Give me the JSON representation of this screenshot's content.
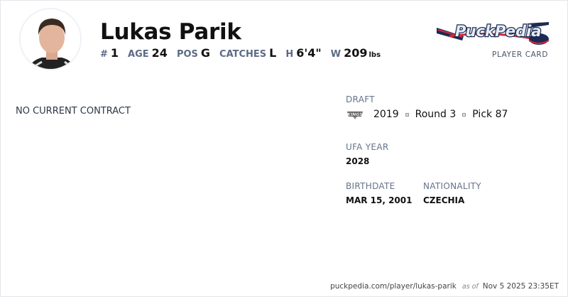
{
  "player": {
    "name": "Lukas Parik"
  },
  "stats": [
    {
      "label": "#",
      "value": "1"
    },
    {
      "label": "AGE",
      "value": "24"
    },
    {
      "label": "POS",
      "value": "G"
    },
    {
      "label": "CATCHES",
      "value": "L"
    },
    {
      "label": "H",
      "value": "6'4\""
    },
    {
      "label": "W",
      "value": "209",
      "unit": "lbs"
    }
  ],
  "brand": {
    "logo_text": "PuckPedia",
    "subtitle": "PLAYER CARD",
    "colors": {
      "navy": "#1c2a55",
      "red": "#d62839"
    }
  },
  "contract": {
    "status": "NO CURRENT CONTRACT"
  },
  "draft": {
    "label": "DRAFT",
    "team_icon": "kings-logo",
    "year": "2019",
    "round": "Round 3",
    "pick": "Pick 87"
  },
  "ufa": {
    "label": "UFA YEAR",
    "value": "2028"
  },
  "birthdate": {
    "label": "BIRTHDATE",
    "value": "MAR 15, 2001"
  },
  "nationality": {
    "label": "NATIONALITY",
    "value": "CZECHIA"
  },
  "footer": {
    "url": "puckpedia.com/player/lukas-parik",
    "as_of": "as of",
    "timestamp": "Nov 5 2025 23:35ET"
  }
}
